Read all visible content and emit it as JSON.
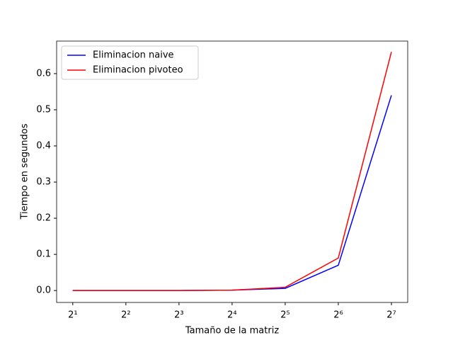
{
  "chart_data": {
    "type": "line",
    "xlabel": "Tamaño de la matriz",
    "ylabel": "Tiempo en segundos",
    "x": [
      2,
      4,
      8,
      16,
      32,
      64,
      128
    ],
    "xscale": "log2",
    "series": [
      {
        "name": "Eliminacion naive",
        "color": "#0000ff",
        "values": [
          0,
          0,
          0,
          0.001,
          0.006,
          0.07,
          0.54
        ]
      },
      {
        "name": "Eliminacion pivoteo",
        "color": "#ff0000",
        "values": [
          0,
          0,
          0,
          0.001,
          0.009,
          0.09,
          0.66
        ]
      }
    ],
    "xlim": [
      1.62,
      158.3
    ],
    "ylim": [
      -0.033,
      0.69
    ],
    "xticks": [
      {
        "value": 2,
        "label": "2¹"
      },
      {
        "value": 4,
        "label": "2²"
      },
      {
        "value": 8,
        "label": "2³"
      },
      {
        "value": 16,
        "label": "2⁴"
      },
      {
        "value": 32,
        "label": "2⁵"
      },
      {
        "value": 64,
        "label": "2⁶"
      },
      {
        "value": 128,
        "label": "2⁷"
      }
    ],
    "yticks": [
      {
        "value": 0,
        "label": "0.0"
      },
      0.1,
      0.2,
      0.3,
      0.4,
      0.5,
      0.6
    ],
    "legend": "upper left"
  }
}
